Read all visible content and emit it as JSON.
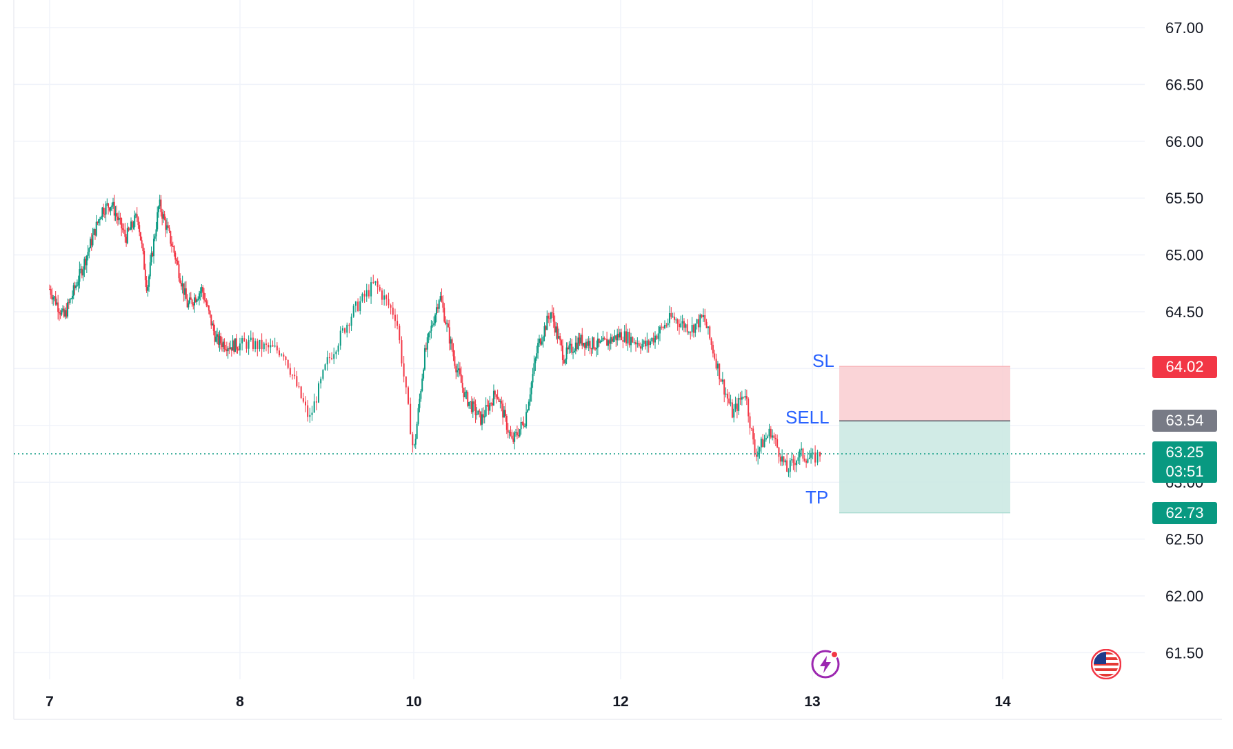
{
  "chart_data": {
    "type": "candlestick",
    "x_ticks": [
      "7",
      "8",
      "10",
      "12",
      "13",
      "14"
    ],
    "y_ticks": [
      67.0,
      66.5,
      66.0,
      65.5,
      65.0,
      64.5,
      64.0,
      63.5,
      63.0,
      62.5,
      62.0,
      61.5
    ],
    "y_tick_labels": [
      "67.00",
      "66.50",
      "66.00",
      "65.50",
      "65.00",
      "64.50",
      "64.00",
      "63.50",
      "63.00",
      "62.50",
      "62.00",
      "61.50"
    ],
    "ylim": [
      61.25,
      67.25
    ],
    "grid": true,
    "price_path": [
      [
        0.0,
        64.7
      ],
      [
        0.3,
        64.45
      ],
      [
        0.7,
        64.9
      ],
      [
        1.1,
        65.4
      ],
      [
        1.3,
        65.45
      ],
      [
        1.6,
        65.15
      ],
      [
        1.85,
        65.35
      ],
      [
        2.05,
        64.7
      ],
      [
        2.3,
        65.45
      ],
      [
        2.6,
        65.05
      ],
      [
        2.9,
        64.55
      ],
      [
        3.2,
        64.7
      ],
      [
        3.5,
        64.25
      ],
      [
        3.8,
        64.2
      ],
      [
        4.1,
        64.22
      ],
      [
        4.5,
        64.15
      ],
      [
        4.8,
        63.55
      ],
      [
        5.0,
        64.05
      ],
      [
        5.3,
        64.5
      ],
      [
        5.55,
        64.75
      ],
      [
        5.8,
        64.45
      ],
      [
        6.0,
        63.25
      ],
      [
        6.2,
        64.1
      ],
      [
        6.5,
        64.65
      ],
      [
        6.8,
        64.05
      ],
      [
        7.0,
        63.75
      ],
      [
        7.3,
        63.55
      ],
      [
        7.6,
        63.8
      ],
      [
        7.9,
        63.35
      ],
      [
        8.15,
        63.55
      ],
      [
        8.4,
        64.2
      ],
      [
        8.65,
        64.5
      ],
      [
        8.9,
        64.1
      ],
      [
        9.2,
        64.25
      ],
      [
        9.6,
        64.2
      ],
      [
        10.0,
        64.3
      ],
      [
        10.4,
        64.2
      ],
      [
        10.8,
        64.45
      ],
      [
        11.1,
        64.35
      ],
      [
        11.3,
        64.45
      ],
      [
        11.55,
        63.95
      ],
      [
        11.75,
        63.6
      ],
      [
        11.95,
        63.8
      ],
      [
        12.1,
        63.25
      ],
      [
        12.35,
        63.45
      ],
      [
        12.6,
        63.1
      ],
      [
        12.8,
        63.25
      ],
      [
        13.0,
        63.2
      ],
      [
        13.08,
        63.25
      ]
    ],
    "last_price": "63.25",
    "countdown": "03:51",
    "position": {
      "direction": "SELL",
      "entry": "63.54",
      "stop_loss": "64.02",
      "take_profit": "62.73",
      "sl_label": "SL",
      "entry_label": "SELL",
      "tp_label": "TP"
    },
    "colors": {
      "up": "#089981",
      "down": "#f23645",
      "grid": "#f0f3fa",
      "sl_zone": "#f9cdd0",
      "tp_zone": "#cce9e3",
      "entry_badge": "#787b86",
      "label_text": "#2962ff"
    }
  },
  "icons": {
    "lightning": "lightning-alert-icon",
    "flag": "us-flag-icon"
  }
}
